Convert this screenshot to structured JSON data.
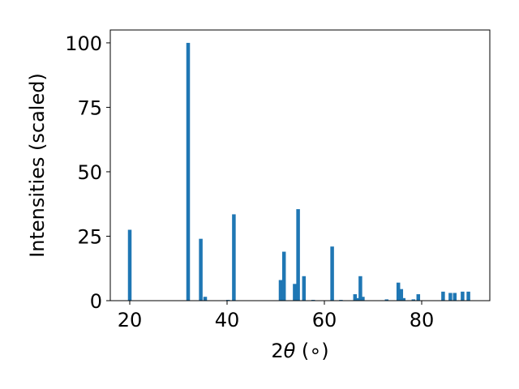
{
  "chart_data": {
    "type": "bar",
    "xlabel_prefix": "2",
    "xlabel_var": "θ",
    "xlabel_suffix": " (∘)",
    "ylabel": "Intensities (scaled)",
    "xlim": [
      16,
      94
    ],
    "ylim": [
      0,
      105
    ],
    "xticks": [
      20,
      40,
      60,
      80
    ],
    "yticks": [
      0,
      25,
      50,
      75,
      100
    ],
    "grid": false,
    "bar_color": "#1f77b4",
    "bar_width": 0.75,
    "points": [
      {
        "x": 20.0,
        "y": 27.5
      },
      {
        "x": 32.0,
        "y": 100
      },
      {
        "x": 34.6,
        "y": 24
      },
      {
        "x": 35.5,
        "y": 1.5
      },
      {
        "x": 40.2,
        "y": 0.3
      },
      {
        "x": 41.4,
        "y": 33.5
      },
      {
        "x": 51.0,
        "y": 8
      },
      {
        "x": 51.7,
        "y": 19
      },
      {
        "x": 53.9,
        "y": 6.5
      },
      {
        "x": 54.6,
        "y": 35.5
      },
      {
        "x": 55.8,
        "y": 9.5
      },
      {
        "x": 57.7,
        "y": 0.3
      },
      {
        "x": 61.6,
        "y": 21
      },
      {
        "x": 63.4,
        "y": 0.3
      },
      {
        "x": 66.3,
        "y": 2.5
      },
      {
        "x": 66.9,
        "y": 1
      },
      {
        "x": 67.4,
        "y": 9.5
      },
      {
        "x": 67.9,
        "y": 1.5
      },
      {
        "x": 72.8,
        "y": 0.5
      },
      {
        "x": 75.2,
        "y": 7
      },
      {
        "x": 75.8,
        "y": 4.5
      },
      {
        "x": 76.3,
        "y": 1
      },
      {
        "x": 78.3,
        "y": 0.5
      },
      {
        "x": 79.3,
        "y": 2.5
      },
      {
        "x": 84.4,
        "y": 3.5
      },
      {
        "x": 85.9,
        "y": 3
      },
      {
        "x": 86.8,
        "y": 3
      },
      {
        "x": 88.4,
        "y": 3.5
      },
      {
        "x": 89.6,
        "y": 3.5
      }
    ]
  }
}
